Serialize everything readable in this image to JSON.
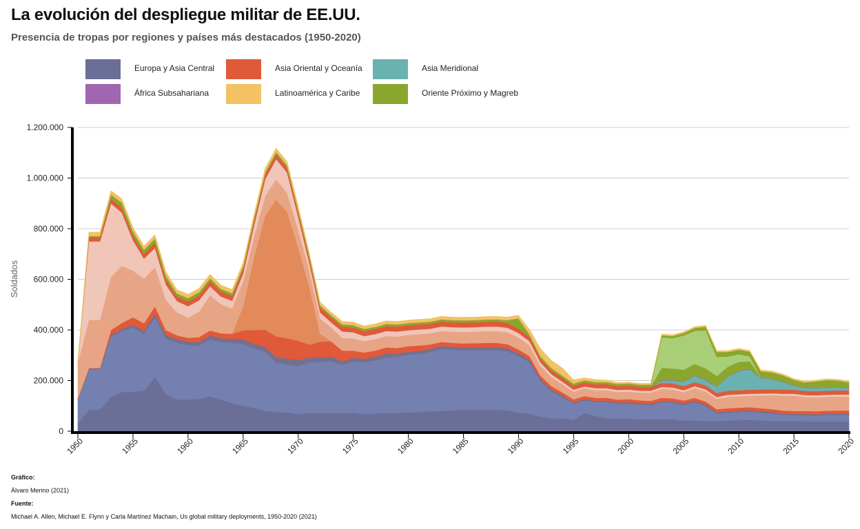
{
  "header": {
    "title": "La evolución del despliegue militar de EE.UU.",
    "subtitle": "Presencia de tropas por regiones y países más destacados (1950-2020)"
  },
  "credits": {
    "graphic_heading": "Gráfico:",
    "graphic_author": "Álvaro Merino (2021)",
    "source_heading": "Fuente:",
    "source_text": "Michael A. Allen, Michael E. Flynn y Carla Martínez Machain, Us global military deployments, 1950-2020 (2021)"
  },
  "chart_data": {
    "type": "area",
    "stacked": true,
    "ylabel": "Soldados",
    "xlabel": "",
    "xlim": [
      1950,
      2020
    ],
    "ylim": [
      0,
      1200000
    ],
    "y_ticks": [
      0,
      200000,
      400000,
      600000,
      800000,
      1000000,
      1200000
    ],
    "y_tick_labels": [
      "0",
      "200.000",
      "400.000",
      "600.000",
      "800.000",
      "1.000.000",
      "1.200.000"
    ],
    "x_ticks": [
      1950,
      1955,
      1960,
      1965,
      1970,
      1975,
      1980,
      1985,
      1990,
      1995,
      2000,
      2005,
      2010,
      2015,
      2020
    ],
    "x_tick_labels": [
      "1950",
      "1955",
      "1960",
      "1965",
      "1970",
      "1975",
      "1980",
      "1985",
      "1990",
      "1995",
      "2000",
      "2005",
      "2010",
      "2015",
      "2020"
    ],
    "grid": "horizontal",
    "legend_position": "top",
    "legend": [
      {
        "name": "Europa y Asia Central",
        "color": "#6b6e96"
      },
      {
        "name": "Asia Oriental y Oceanía",
        "color": "#e05a3a"
      },
      {
        "name": "Asia Meridional",
        "color": "#6ab2b0"
      },
      {
        "name": "África Subsahariana",
        "color": "#a066b0"
      },
      {
        "name": "Latinoamérica y Caribe",
        "color": "#f2c264"
      },
      {
        "name": "Oriente Próximo y Magreb",
        "color": "#8ba62c"
      }
    ],
    "x": [
      1950,
      1951,
      1952,
      1953,
      1954,
      1955,
      1956,
      1957,
      1958,
      1959,
      1960,
      1961,
      1962,
      1963,
      1964,
      1965,
      1966,
      1967,
      1968,
      1969,
      1970,
      1971,
      1972,
      1973,
      1974,
      1975,
      1976,
      1977,
      1978,
      1979,
      1980,
      1981,
      1982,
      1983,
      1984,
      1985,
      1986,
      1987,
      1988,
      1989,
      1990,
      1991,
      1992,
      1993,
      1994,
      1995,
      1996,
      1997,
      1998,
      1999,
      2000,
      2001,
      2002,
      2003,
      2004,
      2005,
      2006,
      2007,
      2008,
      2009,
      2010,
      2011,
      2012,
      2013,
      2014,
      2015,
      2016,
      2017,
      2018,
      2019,
      2020
    ],
    "series": [
      {
        "color": "#6b6e96",
        "values": [
          30000,
          85000,
          85000,
          135000,
          155000,
          155000,
          160000,
          215000,
          145000,
          125000,
          125000,
          128000,
          138000,
          125000,
          110000,
          100000,
          92000,
          80000,
          76000,
          74000,
          67000,
          72000,
          72000,
          72000,
          72000,
          72000,
          67000,
          70000,
          72000,
          72000,
          74000,
          76000,
          78000,
          80000,
          82000,
          85000,
          85000,
          85000,
          84000,
          82000,
          73000,
          68000,
          58000,
          52000,
          50000,
          44000,
          72000,
          60000,
          52000,
          50000,
          50000,
          47000,
          47000,
          48000,
          47000,
          42000,
          42000,
          40000,
          40000,
          42000,
          44000,
          45000,
          42000,
          40000,
          40000,
          39000,
          38000,
          38000,
          38000,
          38000,
          38000
        ]
      },
      {
        "color": "#7380b0",
        "values": [
          95000,
          160000,
          160000,
          240000,
          240000,
          255000,
          225000,
          235000,
          220000,
          225000,
          215000,
          210000,
          225000,
          227000,
          240000,
          245000,
          235000,
          235000,
          195000,
          190000,
          190000,
          200000,
          200000,
          205000,
          190000,
          203000,
          205000,
          210000,
          220000,
          223000,
          228000,
          229000,
          235000,
          245000,
          240000,
          235000,
          235000,
          235000,
          236000,
          233000,
          225000,
          205000,
          140000,
          105000,
          85000,
          65000,
          50000,
          55000,
          63000,
          58000,
          60000,
          58000,
          56000,
          67000,
          66000,
          62000,
          73000,
          60000,
          30000,
          32000,
          32000,
          33000,
          32000,
          30000,
          25000,
          24000,
          25000,
          24000,
          26000,
          27000,
          27000
        ]
      },
      {
        "color": "#75708f",
        "values": [
          3000,
          3000,
          3000,
          5000,
          8000,
          10000,
          12000,
          14000,
          14000,
          14000,
          14000,
          14000,
          15000,
          15000,
          15000,
          18000,
          18000,
          18000,
          22000,
          23000,
          25000,
          20000,
          20000,
          18000,
          15000,
          15000,
          14000,
          14000,
          14000,
          12000,
          12000,
          12000,
          12000,
          12000,
          12000,
          12000,
          12000,
          12000,
          12000,
          12000,
          10000,
          10000,
          8000,
          7000,
          6000,
          5000,
          5000,
          5000,
          5000,
          5000,
          5000,
          5000,
          5000,
          5000,
          5000,
          5000,
          5000,
          5000,
          5000,
          5000,
          5000,
          5000,
          5000,
          5000,
          5000,
          5000,
          5000,
          5000,
          5000,
          5000,
          5000
        ]
      },
      {
        "color": "#e05a3a",
        "values": [
          2000,
          2000,
          2000,
          20000,
          25000,
          30000,
          30000,
          30000,
          20000,
          15000,
          15000,
          20000,
          20000,
          20000,
          20000,
          35000,
          55000,
          68000,
          82000,
          80000,
          75000,
          50000,
          62000,
          60000,
          42000,
          28000,
          25000,
          25000,
          25000,
          22000,
          22000,
          22000,
          18000,
          16000,
          15000,
          15000,
          16000,
          17000,
          17000,
          17000,
          15000,
          14000,
          14000,
          14000,
          12000,
          12000,
          12000,
          12000,
          12000,
          12000,
          12000,
          12000,
          12000,
          12000,
          12000,
          12000,
          12000,
          12000,
          12000,
          12000,
          12000,
          12000,
          12000,
          12000,
          12000,
          12000,
          12000,
          12000,
          12000,
          12000,
          12000
        ]
      },
      {
        "color": "#e28a5a",
        "values": [
          0,
          0,
          0,
          0,
          0,
          0,
          0,
          0,
          0,
          0,
          0,
          0,
          0,
          0,
          0,
          95000,
          290000,
          450000,
          540000,
          500000,
          370000,
          230000,
          30000,
          0,
          0,
          0,
          0,
          0,
          0,
          0,
          0,
          0,
          0,
          0,
          0,
          0,
          0,
          0,
          0,
          0,
          0,
          0,
          0,
          0,
          0,
          0,
          0,
          0,
          0,
          0,
          0,
          0,
          0,
          0,
          0,
          0,
          0,
          0,
          0,
          0,
          0,
          0,
          0,
          0,
          0,
          0,
          0,
          0,
          0,
          0,
          0
        ]
      },
      {
        "color": "#e8a585",
        "values": [
          140000,
          190000,
          190000,
          210000,
          225000,
          185000,
          175000,
          155000,
          120000,
          90000,
          80000,
          100000,
          140000,
          115000,
          100000,
          100000,
          80000,
          80000,
          80000,
          75000,
          70000,
          65000,
          60000,
          55000,
          50000,
          48000,
          45000,
          45000,
          45000,
          45000,
          45000,
          45000,
          44000,
          43000,
          44000,
          45000,
          45000,
          46000,
          47000,
          47000,
          47000,
          43000,
          38000,
          35000,
          32000,
          30000,
          30000,
          30000,
          30000,
          30000,
          30000,
          30000,
          32000,
          35000,
          35000,
          33000,
          38000,
          40000,
          40000,
          45000,
          45000,
          45000,
          50000,
          55000,
          58000,
          60000,
          55000,
          55000,
          55000,
          55000,
          55000
        ]
      },
      {
        "color": "#efc6b8",
        "values": [
          0,
          310000,
          310000,
          290000,
          210000,
          120000,
          80000,
          75000,
          60000,
          45000,
          45000,
          45000,
          35000,
          30000,
          30000,
          30000,
          45000,
          65000,
          80000,
          80000,
          50000,
          30000,
          25000,
          20000,
          25000,
          25000,
          20000,
          20000,
          20000,
          20000,
          18000,
          18000,
          18000,
          18000,
          18000,
          18000,
          18000,
          18000,
          18000,
          18000,
          18000,
          16000,
          14000,
          12000,
          10000,
          8000,
          8000,
          8000,
          8000,
          8000,
          8000,
          8000,
          8000,
          8000,
          8000,
          8000,
          8000,
          8000,
          8000,
          8000,
          8000,
          8000,
          8000,
          8000,
          8000,
          8000,
          8000,
          8000,
          8000,
          8000,
          8000
        ]
      },
      {
        "color": "#e05a3a",
        "values": [
          0,
          18000,
          18000,
          20000,
          20000,
          20000,
          20000,
          22000,
          20000,
          18000,
          20000,
          20000,
          22000,
          20000,
          20000,
          20000,
          20000,
          20000,
          20000,
          20000,
          20000,
          20000,
          20000,
          20000,
          20000,
          20000,
          20000,
          20000,
          20000,
          20000,
          20000,
          20000,
          20000,
          20000,
          20000,
          20000,
          20000,
          20000,
          20000,
          20000,
          18000,
          18000,
          16000,
          16000,
          16000,
          16000,
          16000,
          16000,
          16000,
          16000,
          16000,
          16000,
          16000,
          16000,
          16000,
          16000,
          16000,
          16000,
          16000,
          16000,
          16000,
          16000,
          16000,
          16000,
          16000,
          16000,
          16000,
          16000,
          16000,
          16000,
          16000
        ]
      },
      {
        "color": "#6ab2b0",
        "values": [
          0,
          0,
          0,
          0,
          0,
          0,
          0,
          0,
          0,
          0,
          0,
          0,
          0,
          0,
          0,
          0,
          0,
          0,
          0,
          0,
          0,
          0,
          0,
          0,
          0,
          0,
          0,
          0,
          0,
          0,
          0,
          0,
          0,
          0,
          0,
          0,
          0,
          0,
          0,
          0,
          0,
          0,
          0,
          0,
          0,
          0,
          0,
          0,
          0,
          0,
          0,
          0,
          0,
          8000,
          12000,
          18000,
          25000,
          20000,
          25000,
          55000,
          75000,
          80000,
          45000,
          40000,
          30000,
          15000,
          12000,
          12000,
          12000,
          12000,
          8000
        ]
      },
      {
        "color": "#a066b0",
        "values": [
          0,
          0,
          0,
          0,
          0,
          0,
          0,
          0,
          0,
          0,
          0,
          0,
          0,
          0,
          0,
          0,
          0,
          0,
          0,
          0,
          0,
          0,
          0,
          0,
          0,
          0,
          0,
          0,
          0,
          0,
          0,
          0,
          0,
          0,
          0,
          0,
          0,
          0,
          0,
          0,
          0,
          0,
          0,
          0,
          0,
          0,
          0,
          0,
          0,
          0,
          0,
          0,
          0,
          2000,
          2000,
          2000,
          2000,
          2000,
          2000,
          2000,
          2000,
          2000,
          2000,
          2000,
          2000,
          2000,
          2000,
          2000,
          2000,
          2000,
          2000
        ]
      },
      {
        "color": "#8ba62c",
        "values": [
          0,
          0,
          0,
          0,
          0,
          0,
          0,
          0,
          0,
          0,
          0,
          0,
          0,
          0,
          0,
          0,
          0,
          0,
          0,
          0,
          0,
          0,
          0,
          0,
          0,
          0,
          0,
          0,
          0,
          0,
          0,
          0,
          0,
          0,
          0,
          0,
          0,
          0,
          0,
          0,
          0,
          0,
          0,
          0,
          0,
          0,
          0,
          0,
          0,
          0,
          0,
          0,
          0,
          50000,
          45000,
          45000,
          45000,
          45000,
          40000,
          38000,
          35000,
          30000,
          0,
          0,
          0,
          0,
          0,
          0,
          0,
          0,
          0
        ]
      },
      {
        "color": "#a8cf78",
        "values": [
          0,
          0,
          0,
          0,
          0,
          0,
          0,
          0,
          0,
          0,
          0,
          0,
          0,
          0,
          0,
          0,
          0,
          0,
          0,
          0,
          0,
          0,
          0,
          0,
          0,
          0,
          0,
          0,
          0,
          0,
          0,
          0,
          0,
          0,
          0,
          0,
          0,
          0,
          0,
          0,
          0,
          0,
          0,
          0,
          0,
          0,
          0,
          0,
          0,
          0,
          0,
          0,
          0,
          120000,
          120000,
          135000,
          130000,
          150000,
          75000,
          40000,
          30000,
          20000,
          0,
          0,
          0,
          0,
          0,
          0,
          0,
          0,
          0
        ]
      },
      {
        "color": "#8ba62c",
        "values": [
          0,
          3000,
          3000,
          15000,
          20000,
          15000,
          15000,
          15000,
          15000,
          12000,
          12000,
          12000,
          10000,
          10000,
          10000,
          8000,
          8000,
          8000,
          8000,
          8000,
          8000,
          8000,
          8000,
          8000,
          8000,
          8000,
          8000,
          8000,
          8000,
          8000,
          8000,
          8000,
          8000,
          8000,
          8000,
          8000,
          8000,
          8000,
          8000,
          10000,
          40000,
          8000,
          8000,
          8000,
          8000,
          8000,
          8000,
          8000,
          8000,
          8000,
          8000,
          8000,
          8000,
          8000,
          8000,
          10000,
          12000,
          15000,
          20000,
          18000,
          18000,
          18000,
          25000,
          25000,
          25000,
          22000,
          20000,
          25000,
          28000,
          25000,
          22000
        ]
      },
      {
        "color": "#f2c264",
        "values": [
          10000,
          15000,
          15000,
          15000,
          15000,
          15000,
          15000,
          15000,
          15000,
          15000,
          15000,
          15000,
          15000,
          15000,
          15000,
          15000,
          15000,
          15000,
          15000,
          15000,
          15000,
          12000,
          12000,
          12000,
          12000,
          12000,
          12000,
          12000,
          12000,
          12000,
          12000,
          12000,
          12000,
          12000,
          12000,
          12000,
          12000,
          12000,
          12000,
          12000,
          12000,
          20000,
          30000,
          30000,
          30000,
          15000,
          10000,
          10000,
          8000,
          5000,
          5000,
          5000,
          5000,
          5000,
          5000,
          5000,
          5000,
          5000,
          5000,
          5000,
          5000,
          5000,
          5000,
          5000,
          5000,
          5000,
          5000,
          5000,
          5000,
          5000,
          5000
        ]
      }
    ]
  }
}
